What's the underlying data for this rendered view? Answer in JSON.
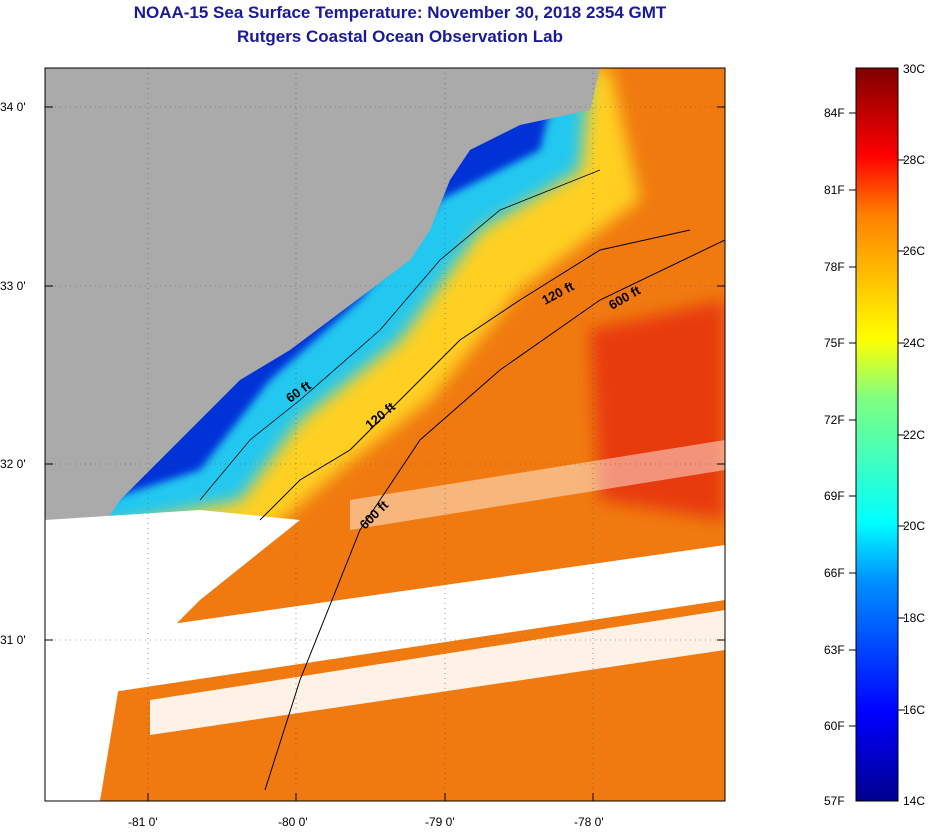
{
  "header": {
    "title": "NOAA-15 Sea Surface Temperature:  November 30, 2018 2354 GMT",
    "subtitle": "Rutgers Coastal Ocean Observation Lab"
  },
  "map": {
    "lat_labels": [
      "34 0'",
      "33 0'",
      "32 0'",
      "31 0'"
    ],
    "lon_labels": [
      "-81 0'",
      "-80 0'",
      "-79 0'",
      "-78 0'"
    ],
    "isobath_labels": [
      "120 ft",
      "600 ft",
      "60 ft",
      "120 ft",
      "600 ft"
    ]
  },
  "colorbar": {
    "celsius_labels": [
      "30C",
      "28C",
      "26C",
      "24C",
      "22C",
      "20C",
      "18C",
      "16C",
      "14C"
    ],
    "fahrenheit_labels": [
      "84F",
      "81F",
      "78F",
      "75F",
      "72F",
      "69F",
      "66F",
      "63F",
      "60F",
      "57F"
    ],
    "range_c": [
      14,
      30
    ]
  },
  "colors": {
    "land": "#aaaaaa",
    "title": "#1a1a99",
    "cloud": "#ffffff"
  }
}
